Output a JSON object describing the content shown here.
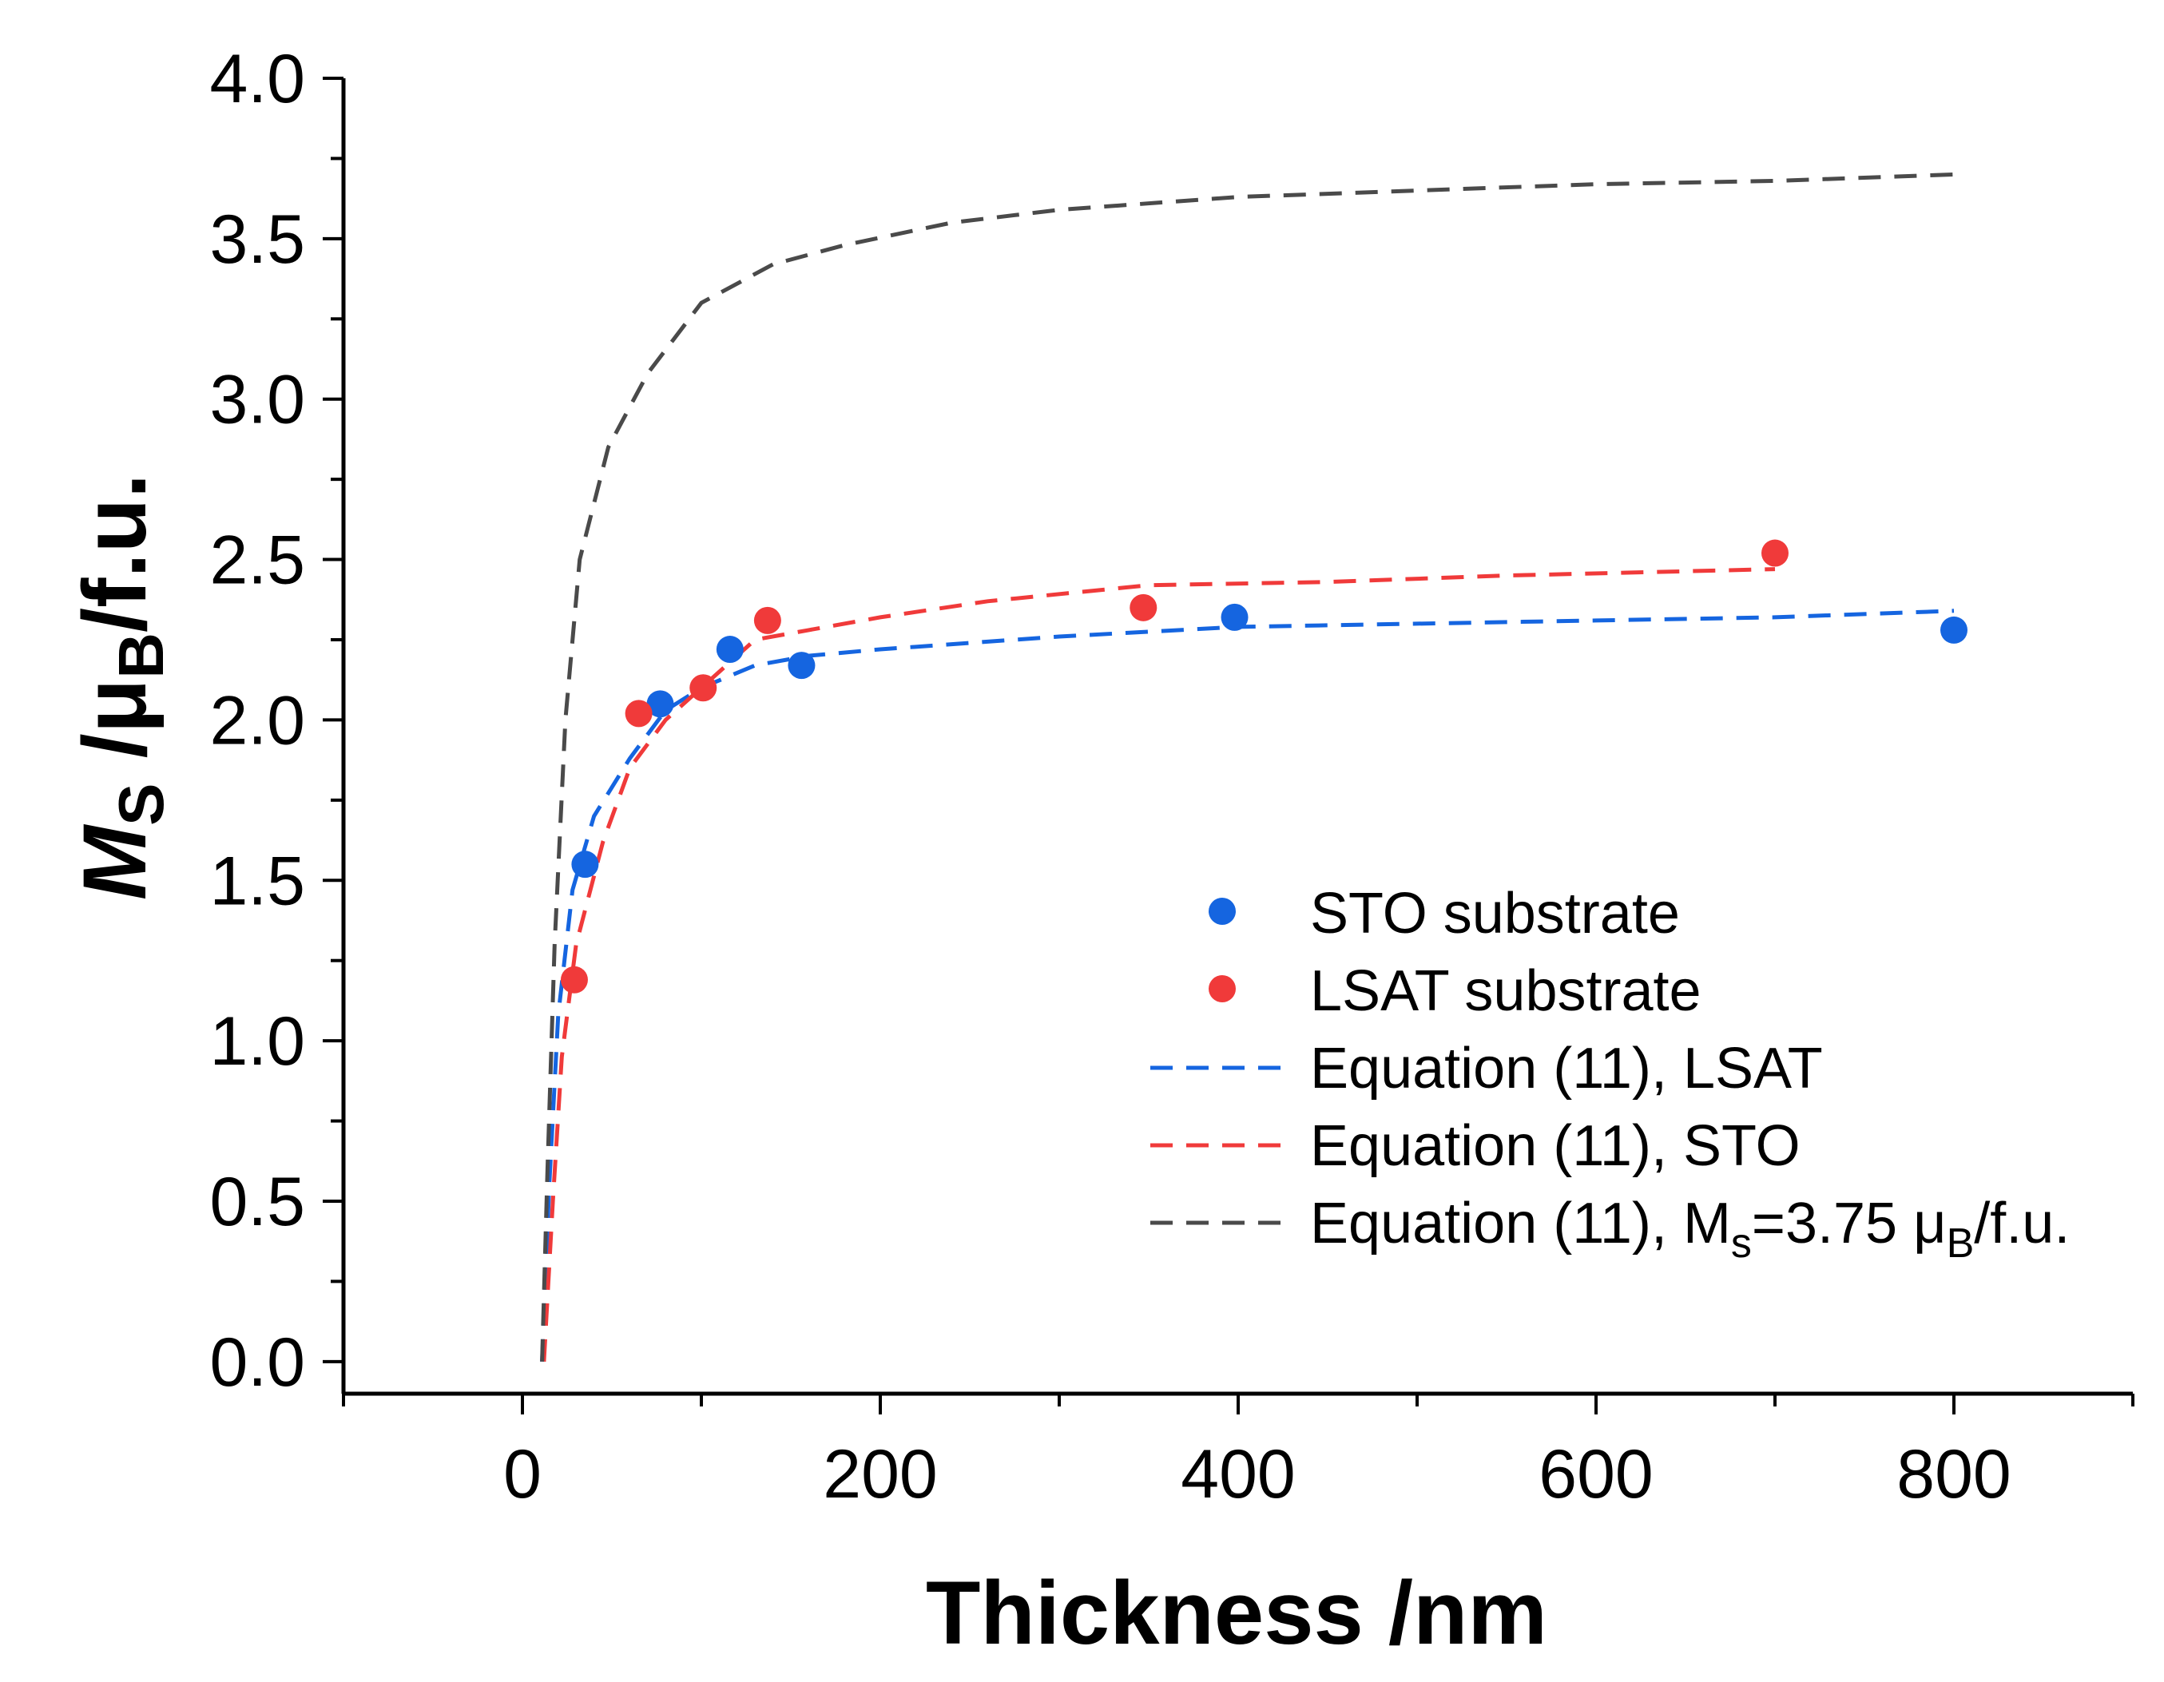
{
  "chart_data": {
    "type": "scatter",
    "title": "",
    "xlabel": "Thickness /nm",
    "ylabel": {
      "main": "M",
      "sub": "S",
      "rest": " /μ",
      "sub2": "B",
      "tail": "/f.u."
    },
    "xlim": [
      -100,
      900
    ],
    "ylim": [
      -0.1,
      4.0
    ],
    "x_ticks": [
      0,
      200,
      400,
      600,
      800
    ],
    "x_tick_labels": [
      "0",
      "200",
      "400",
      "600",
      "800"
    ],
    "y_ticks": [
      0.0,
      0.5,
      1.0,
      1.5,
      2.0,
      2.5,
      3.0,
      3.5,
      4.0
    ],
    "y_tick_labels": [
      "0.0",
      "0.5",
      "1.0",
      "1.5",
      "2.0",
      "2.5",
      "3.0",
      "3.5",
      "4.0"
    ],
    "grid": false,
    "legend_position": "lower-right",
    "series": [
      {
        "name": "STO substrate",
        "kind": "scatter",
        "color": "#1565e0",
        "points": [
          [
            35,
            1.55
          ],
          [
            77,
            2.05
          ],
          [
            116,
            2.22
          ],
          [
            156,
            2.17
          ],
          [
            398,
            2.32
          ],
          [
            800,
            2.28
          ]
        ]
      },
      {
        "name": "LSAT substrate",
        "kind": "scatter",
        "color": "#f03a3a",
        "points": [
          [
            29,
            1.19
          ],
          [
            65,
            2.02
          ],
          [
            101,
            2.1
          ],
          [
            137,
            2.31
          ],
          [
            347,
            2.35
          ],
          [
            700,
            2.52
          ]
        ]
      },
      {
        "name": "Equation (11), LSAT",
        "kind": "dashed-line",
        "color": "#1565e0",
        "points": [
          [
            11,
            0.0
          ],
          [
            15,
            0.55
          ],
          [
            20,
            1.08
          ],
          [
            28,
            1.47
          ],
          [
            40,
            1.7
          ],
          [
            60,
            1.88
          ],
          [
            80,
            2.03
          ],
          [
            100,
            2.1
          ],
          [
            130,
            2.17
          ],
          [
            160,
            2.2
          ],
          [
            200,
            2.22
          ],
          [
            300,
            2.26
          ],
          [
            400,
            2.29
          ],
          [
            500,
            2.3
          ],
          [
            600,
            2.31
          ],
          [
            700,
            2.32
          ],
          [
            800,
            2.34
          ]
        ]
      },
      {
        "name": "Equation (11), STO",
        "kind": "dashed-line",
        "color": "#f03a3a",
        "points": [
          [
            12,
            0.0
          ],
          [
            17,
            0.5
          ],
          [
            22,
            0.95
          ],
          [
            30,
            1.3
          ],
          [
            45,
            1.62
          ],
          [
            60,
            1.85
          ],
          [
            80,
            2.0
          ],
          [
            100,
            2.1
          ],
          [
            130,
            2.25
          ],
          [
            160,
            2.28
          ],
          [
            200,
            2.32
          ],
          [
            260,
            2.37
          ],
          [
            350,
            2.42
          ],
          [
            450,
            2.43
          ],
          [
            550,
            2.45
          ],
          [
            700,
            2.47
          ]
        ]
      },
      {
        "name": "Equation (11), M_s=3.75 μ_B/f.u.",
        "legend_parts": {
          "a": "Equation (11), M",
          "sub1": "s",
          "b": "=3.75 μ",
          "sub2": "B",
          "c": "/f.u."
        },
        "kind": "dashed-line",
        "color": "#4a4a4a",
        "points": [
          [
            11,
            0.0
          ],
          [
            14,
            0.6
          ],
          [
            18,
            1.3
          ],
          [
            24,
            2.0
          ],
          [
            32,
            2.5
          ],
          [
            48,
            2.85
          ],
          [
            70,
            3.08
          ],
          [
            100,
            3.3
          ],
          [
            140,
            3.42
          ],
          [
            180,
            3.48
          ],
          [
            240,
            3.55
          ],
          [
            300,
            3.59
          ],
          [
            400,
            3.63
          ],
          [
            500,
            3.65
          ],
          [
            600,
            3.67
          ],
          [
            700,
            3.68
          ],
          [
            800,
            3.7
          ]
        ]
      }
    ]
  }
}
